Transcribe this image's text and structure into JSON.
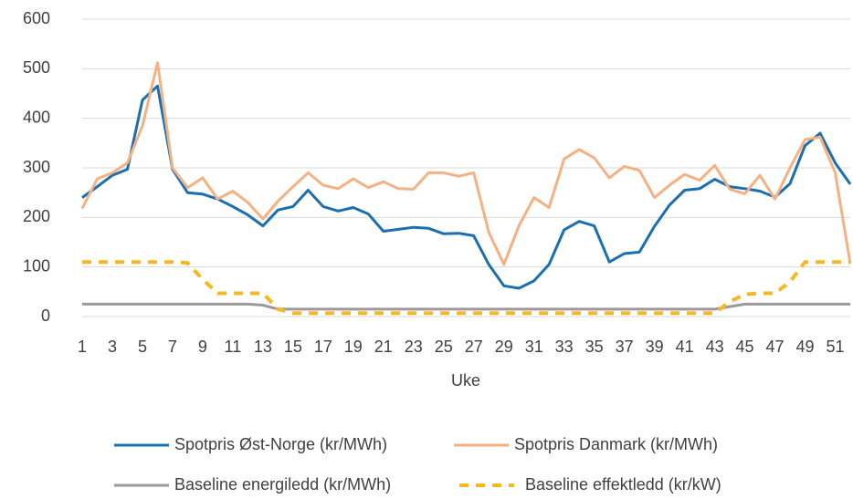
{
  "chart_data": {
    "type": "line",
    "x_label": "Uke",
    "x": [
      1,
      2,
      3,
      4,
      5,
      6,
      7,
      8,
      9,
      10,
      11,
      12,
      13,
      14,
      15,
      16,
      17,
      18,
      19,
      20,
      21,
      22,
      23,
      24,
      25,
      26,
      27,
      28,
      29,
      30,
      31,
      32,
      33,
      34,
      35,
      36,
      37,
      38,
      39,
      40,
      41,
      42,
      43,
      44,
      45,
      46,
      47,
      48,
      49,
      50,
      51,
      52
    ],
    "xlim": [
      1,
      52
    ],
    "xticks": [
      1,
      3,
      5,
      7,
      9,
      11,
      13,
      15,
      17,
      19,
      21,
      23,
      25,
      27,
      29,
      31,
      33,
      35,
      37,
      39,
      41,
      43,
      45,
      47,
      49,
      51
    ],
    "ylim": [
      0,
      600
    ],
    "yticks": [
      0,
      100,
      200,
      300,
      400,
      500,
      600
    ],
    "grid": true,
    "legend": "bottom",
    "series": [
      {
        "name": "Spotpris Øst-Norge (kr/MWh)",
        "color": "#1b6faf",
        "dash": false,
        "values": [
          240,
          262,
          285,
          297,
          437,
          465,
          297,
          250,
          247,
          237,
          222,
          205,
          183,
          215,
          222,
          255,
          222,
          213,
          220,
          207,
          172,
          176,
          180,
          178,
          167,
          168,
          163,
          105,
          62,
          57,
          72,
          105,
          175,
          192,
          183,
          110,
          127,
          130,
          182,
          225,
          255,
          258,
          277,
          262,
          258,
          253,
          241,
          268,
          345,
          370,
          310,
          267
        ]
      },
      {
        "name": "Spotpris Danmark (kr/MWh)",
        "color": "#f4b183",
        "dash": false,
        "values": [
          218,
          278,
          290,
          310,
          385,
          512,
          300,
          260,
          280,
          237,
          253,
          230,
          197,
          233,
          262,
          290,
          265,
          258,
          278,
          260,
          272,
          258,
          257,
          290,
          290,
          283,
          290,
          170,
          105,
          183,
          240,
          220,
          318,
          337,
          320,
          280,
          303,
          295,
          240,
          265,
          287,
          275,
          305,
          257,
          248,
          285,
          237,
          300,
          357,
          362,
          290,
          107
        ]
      },
      {
        "name": "Baseline energiledd (kr/MWh)",
        "color": "#9a9a9a",
        "dash": false,
        "values": [
          25,
          25,
          25,
          25,
          25,
          25,
          25,
          25,
          25,
          25,
          25,
          25,
          23,
          15,
          15,
          15,
          15,
          15,
          15,
          15,
          15,
          15,
          15,
          15,
          15,
          15,
          15,
          15,
          15,
          15,
          15,
          15,
          15,
          15,
          15,
          15,
          15,
          15,
          15,
          15,
          15,
          15,
          15,
          20,
          25,
          25,
          25,
          25,
          25,
          25,
          25,
          25
        ]
      },
      {
        "name": "Baseline effektledd (kr/kW)",
        "color": "#f6b822",
        "dash": true,
        "values": [
          110,
          110,
          110,
          110,
          110,
          110,
          110,
          108,
          75,
          47,
          47,
          47,
          47,
          15,
          7,
          7,
          7,
          7,
          7,
          7,
          7,
          7,
          7,
          7,
          7,
          7,
          7,
          7,
          7,
          7,
          7,
          7,
          7,
          7,
          7,
          7,
          7,
          7,
          7,
          7,
          7,
          7,
          7,
          30,
          45,
          47,
          47,
          70,
          110,
          110,
          110,
          110
        ]
      }
    ]
  }
}
